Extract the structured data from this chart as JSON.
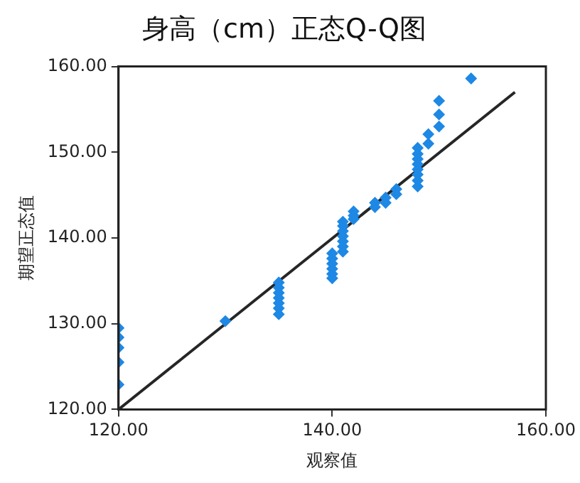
{
  "chart_data": {
    "type": "scatter",
    "title": "身高（cm）正态Q-Q图",
    "xlabel": "观察值",
    "ylabel": "期望正态值",
    "xlim": [
      120,
      160
    ],
    "xticks": [
      {
        "value": 120,
        "label": "120.00"
      },
      {
        "value": 140,
        "label": "140.00"
      },
      {
        "value": 160,
        "label": "160.00"
      }
    ],
    "ylim": [
      120,
      160
    ],
    "yticks": [
      {
        "value": 120,
        "label": "120.00"
      },
      {
        "value": 130,
        "label": "130.00"
      },
      {
        "value": 140,
        "label": "140.00"
      },
      {
        "value": 150,
        "label": "150.00"
      },
      {
        "value": 160,
        "label": "160.00"
      }
    ],
    "grid": false,
    "legend": false,
    "series": [
      {
        "marker": "diamond",
        "color": "#1e88e5",
        "x": [
          120,
          120,
          120,
          120,
          120,
          130,
          135,
          135,
          135,
          135,
          135,
          135,
          135,
          140,
          140,
          140,
          140,
          140,
          140,
          141,
          141,
          141,
          141,
          141,
          141,
          141,
          142,
          142,
          142,
          144,
          144,
          145,
          145,
          146,
          146,
          148,
          148,
          148,
          148,
          148,
          148,
          148,
          148,
          149,
          149,
          150,
          150,
          150,
          153
        ],
        "values": [
          129.5,
          128.4,
          127.2,
          125.5,
          122.9,
          130.3,
          134.8,
          134.2,
          133.6,
          133.0,
          132.4,
          131.8,
          131.1,
          138.2,
          137.6,
          137.0,
          136.4,
          135.8,
          135.3,
          141.9,
          141.4,
          140.8,
          140.2,
          139.6,
          139.0,
          138.4,
          143.1,
          142.6,
          142.2,
          144.1,
          143.6,
          144.7,
          144.1,
          145.7,
          145.1,
          150.5,
          149.8,
          149.2,
          148.6,
          148.0,
          147.4,
          146.7,
          146.0,
          152.1,
          151.0,
          156.0,
          154.4,
          153.0,
          158.6
        ]
      },
      {
        "type": "line",
        "marker": "none",
        "color": "#262626",
        "x": [
          120,
          157.1
        ],
        "values": [
          120,
          157
        ]
      }
    ]
  }
}
